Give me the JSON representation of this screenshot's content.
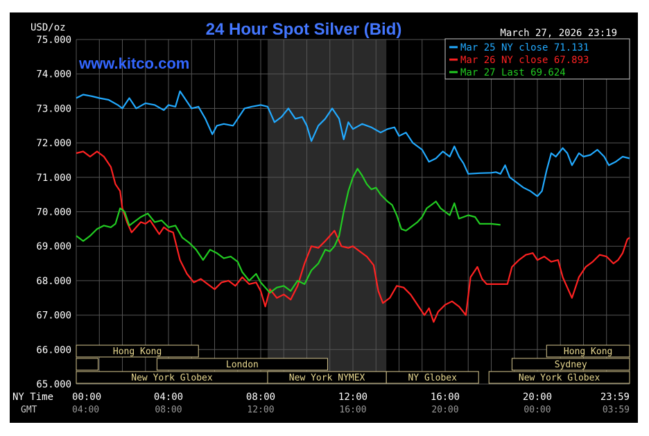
{
  "header": {
    "title": "24 Hour Spot Silver (Bid)",
    "unit": "USD/oz",
    "datetime": "March 27, 2026 23:19",
    "website": "www.kitco.com"
  },
  "legend": [
    {
      "label": "Mar 25 NY close 71.131",
      "color": "#22aaff"
    },
    {
      "label": "Mar 26 NY close 67.893",
      "color": "#ff2222"
    },
    {
      "label": "Mar 27 Last 69.624",
      "color": "#22cc22"
    }
  ],
  "axis_labels": {
    "ny_time": "NY Time",
    "gmt": "GMT"
  },
  "sessions": [
    {
      "label": "Hong Kong",
      "start": 0,
      "end": 5.3,
      "row": 0
    },
    {
      "label": "Hong Kong",
      "start": 20.4,
      "end": 24,
      "row": 0
    },
    {
      "label": "",
      "start": 0,
      "end": 0.95,
      "row": 1
    },
    {
      "label": "London",
      "start": 3.5,
      "end": 10.9,
      "row": 1
    },
    {
      "label": "Sydney",
      "start": 18.9,
      "end": 24,
      "row": 1
    },
    {
      "label": "New York Globex",
      "start": 0,
      "end": 8.3,
      "row": 2
    },
    {
      "label": "New York NYMEX",
      "start": 8.3,
      "end": 13.45,
      "row": 2
    },
    {
      "label": "NY Globex",
      "start": 13.45,
      "end": 17.45,
      "row": 2
    },
    {
      "label": "New York Globex",
      "start": 17.9,
      "end": 24,
      "row": 2
    }
  ],
  "chart_data": {
    "type": "line",
    "title": "24 Hour Spot Silver (Bid)",
    "ylabel": "USD/oz",
    "xlabel": "NY Time",
    "xlim": [
      0,
      24
    ],
    "ylim": [
      65,
      75
    ],
    "x_ticks": [
      {
        "x": 0,
        "ny": "00:00",
        "gmt": "04:00"
      },
      {
        "x": 4,
        "ny": "04:00",
        "gmt": "08:00"
      },
      {
        "x": 8,
        "ny": "08:00",
        "gmt": "12:00"
      },
      {
        "x": 12,
        "ny": "12:00",
        "gmt": "16:00"
      },
      {
        "x": 16,
        "ny": "16:00",
        "gmt": "20:00"
      },
      {
        "x": 20,
        "ny": "20:00",
        "gmt": "00:00"
      },
      {
        "x": 24,
        "ny": "23:59",
        "gmt": "03:59"
      }
    ],
    "y_ticks": [
      "65.000",
      "66.000",
      "67.000",
      "68.000",
      "69.000",
      "70.000",
      "71.000",
      "72.000",
      "73.000",
      "74.000",
      "75.000"
    ],
    "shaded_range": [
      8.3,
      13.45
    ],
    "grid": true,
    "legend_position": "top-right",
    "series": [
      {
        "name": "Mar 25 NY close 71.131",
        "color": "#22aaff",
        "points": [
          [
            0,
            73.3
          ],
          [
            0.3,
            73.4
          ],
          [
            0.7,
            73.35
          ],
          [
            1.0,
            73.3
          ],
          [
            1.4,
            73.25
          ],
          [
            1.8,
            73.1
          ],
          [
            2.0,
            73.0
          ],
          [
            2.3,
            73.3
          ],
          [
            2.6,
            73.0
          ],
          [
            3.0,
            73.15
          ],
          [
            3.4,
            73.1
          ],
          [
            3.8,
            72.95
          ],
          [
            4.0,
            73.1
          ],
          [
            4.3,
            73.05
          ],
          [
            4.5,
            73.5
          ],
          [
            4.8,
            73.2
          ],
          [
            5.0,
            73.0
          ],
          [
            5.3,
            73.05
          ],
          [
            5.6,
            72.7
          ],
          [
            5.9,
            72.25
          ],
          [
            6.1,
            72.5
          ],
          [
            6.4,
            72.55
          ],
          [
            6.8,
            72.5
          ],
          [
            7.0,
            72.7
          ],
          [
            7.3,
            73.0
          ],
          [
            7.6,
            73.05
          ],
          [
            8.0,
            73.1
          ],
          [
            8.3,
            73.05
          ],
          [
            8.6,
            72.6
          ],
          [
            8.9,
            72.75
          ],
          [
            9.2,
            73.0
          ],
          [
            9.5,
            72.7
          ],
          [
            9.8,
            72.75
          ],
          [
            10.0,
            72.5
          ],
          [
            10.2,
            72.05
          ],
          [
            10.5,
            72.5
          ],
          [
            10.8,
            72.7
          ],
          [
            11.1,
            73.0
          ],
          [
            11.4,
            72.7
          ],
          [
            11.6,
            72.1
          ],
          [
            11.8,
            72.6
          ],
          [
            12.0,
            72.4
          ],
          [
            12.4,
            72.55
          ],
          [
            12.8,
            72.45
          ],
          [
            13.2,
            72.3
          ],
          [
            13.5,
            72.4
          ],
          [
            13.8,
            72.45
          ],
          [
            14.0,
            72.2
          ],
          [
            14.3,
            72.3
          ],
          [
            14.6,
            72.0
          ],
          [
            15.0,
            71.8
          ],
          [
            15.3,
            71.45
          ],
          [
            15.6,
            71.55
          ],
          [
            15.9,
            71.75
          ],
          [
            16.2,
            71.6
          ],
          [
            16.4,
            71.9
          ],
          [
            16.6,
            71.6
          ],
          [
            16.8,
            71.4
          ],
          [
            17.0,
            71.1
          ],
          [
            17.5,
            71.12
          ],
          [
            18.0,
            71.13
          ],
          [
            18.2,
            71.15
          ],
          [
            18.4,
            71.1
          ],
          [
            18.6,
            71.35
          ],
          [
            18.8,
            71.0
          ],
          [
            19.1,
            70.85
          ],
          [
            19.4,
            70.7
          ],
          [
            19.7,
            70.6
          ],
          [
            20.0,
            70.45
          ],
          [
            20.2,
            70.6
          ],
          [
            20.4,
            71.2
          ],
          [
            20.6,
            71.7
          ],
          [
            20.8,
            71.6
          ],
          [
            21.1,
            71.85
          ],
          [
            21.3,
            71.7
          ],
          [
            21.5,
            71.35
          ],
          [
            21.8,
            71.7
          ],
          [
            22.0,
            71.6
          ],
          [
            22.3,
            71.65
          ],
          [
            22.6,
            71.8
          ],
          [
            22.9,
            71.6
          ],
          [
            23.1,
            71.35
          ],
          [
            23.4,
            71.45
          ],
          [
            23.7,
            71.6
          ],
          [
            24.0,
            71.55
          ]
        ]
      },
      {
        "name": "Mar 26 NY close 67.893",
        "color": "#ff2222",
        "points": [
          [
            0,
            71.7
          ],
          [
            0.3,
            71.75
          ],
          [
            0.6,
            71.6
          ],
          [
            0.9,
            71.75
          ],
          [
            1.2,
            71.6
          ],
          [
            1.5,
            71.3
          ],
          [
            1.7,
            70.8
          ],
          [
            1.9,
            70.6
          ],
          [
            2.0,
            70.1
          ],
          [
            2.2,
            69.7
          ],
          [
            2.4,
            69.4
          ],
          [
            2.6,
            69.55
          ],
          [
            2.8,
            69.7
          ],
          [
            3.0,
            69.65
          ],
          [
            3.2,
            69.75
          ],
          [
            3.4,
            69.55
          ],
          [
            3.6,
            69.35
          ],
          [
            3.8,
            69.55
          ],
          [
            4.0,
            69.45
          ],
          [
            4.2,
            69.4
          ],
          [
            4.5,
            68.6
          ],
          [
            4.8,
            68.2
          ],
          [
            5.1,
            67.95
          ],
          [
            5.4,
            68.05
          ],
          [
            5.7,
            67.9
          ],
          [
            6.0,
            67.75
          ],
          [
            6.3,
            67.95
          ],
          [
            6.6,
            68.0
          ],
          [
            6.9,
            67.85
          ],
          [
            7.2,
            68.1
          ],
          [
            7.5,
            67.9
          ],
          [
            7.8,
            67.95
          ],
          [
            8.0,
            67.7
          ],
          [
            8.2,
            67.25
          ],
          [
            8.4,
            67.75
          ],
          [
            8.7,
            67.5
          ],
          [
            9.0,
            67.6
          ],
          [
            9.3,
            67.45
          ],
          [
            9.6,
            67.85
          ],
          [
            9.9,
            68.5
          ],
          [
            10.2,
            69.0
          ],
          [
            10.5,
            68.95
          ],
          [
            10.8,
            69.15
          ],
          [
            11.0,
            69.3
          ],
          [
            11.2,
            69.45
          ],
          [
            11.5,
            69.0
          ],
          [
            11.8,
            68.95
          ],
          [
            12.0,
            69.0
          ],
          [
            12.3,
            68.85
          ],
          [
            12.6,
            68.7
          ],
          [
            12.9,
            68.45
          ],
          [
            13.1,
            67.7
          ],
          [
            13.3,
            67.35
          ],
          [
            13.6,
            67.5
          ],
          [
            13.9,
            67.85
          ],
          [
            14.2,
            67.8
          ],
          [
            14.5,
            67.6
          ],
          [
            14.8,
            67.3
          ],
          [
            15.1,
            67.0
          ],
          [
            15.3,
            67.2
          ],
          [
            15.5,
            66.8
          ],
          [
            15.7,
            67.1
          ],
          [
            16.0,
            67.3
          ],
          [
            16.3,
            67.4
          ],
          [
            16.6,
            67.25
          ],
          [
            16.9,
            67.0
          ],
          [
            17.1,
            68.1
          ],
          [
            17.4,
            68.4
          ],
          [
            17.6,
            68.05
          ],
          [
            17.8,
            67.9
          ],
          [
            18.0,
            67.9
          ],
          [
            18.5,
            67.9
          ],
          [
            18.7,
            67.9
          ],
          [
            18.9,
            68.4
          ],
          [
            19.2,
            68.6
          ],
          [
            19.5,
            68.75
          ],
          [
            19.8,
            68.8
          ],
          [
            20.0,
            68.6
          ],
          [
            20.3,
            68.7
          ],
          [
            20.6,
            68.55
          ],
          [
            20.9,
            68.6
          ],
          [
            21.1,
            68.1
          ],
          [
            21.3,
            67.8
          ],
          [
            21.5,
            67.5
          ],
          [
            21.8,
            68.1
          ],
          [
            22.1,
            68.4
          ],
          [
            22.4,
            68.55
          ],
          [
            22.7,
            68.75
          ],
          [
            23.0,
            68.7
          ],
          [
            23.3,
            68.5
          ],
          [
            23.5,
            68.6
          ],
          [
            23.7,
            68.8
          ],
          [
            23.9,
            69.2
          ],
          [
            24.0,
            69.25
          ]
        ]
      },
      {
        "name": "Mar 27 Last 69.624",
        "color": "#22cc22",
        "points": [
          [
            0,
            69.3
          ],
          [
            0.3,
            69.15
          ],
          [
            0.6,
            69.3
          ],
          [
            0.9,
            69.5
          ],
          [
            1.2,
            69.6
          ],
          [
            1.5,
            69.55
          ],
          [
            1.7,
            69.65
          ],
          [
            1.9,
            70.1
          ],
          [
            2.1,
            70.0
          ],
          [
            2.3,
            69.6
          ],
          [
            2.5,
            69.7
          ],
          [
            2.8,
            69.85
          ],
          [
            3.1,
            69.95
          ],
          [
            3.4,
            69.7
          ],
          [
            3.7,
            69.75
          ],
          [
            4.0,
            69.55
          ],
          [
            4.3,
            69.6
          ],
          [
            4.6,
            69.25
          ],
          [
            4.9,
            69.1
          ],
          [
            5.2,
            68.9
          ],
          [
            5.5,
            68.6
          ],
          [
            5.8,
            68.9
          ],
          [
            6.1,
            68.8
          ],
          [
            6.4,
            68.65
          ],
          [
            6.7,
            68.7
          ],
          [
            7.0,
            68.55
          ],
          [
            7.2,
            68.25
          ],
          [
            7.5,
            68.0
          ],
          [
            7.8,
            68.2
          ],
          [
            8.0,
            67.95
          ],
          [
            8.2,
            67.8
          ],
          [
            8.4,
            67.65
          ],
          [
            8.7,
            67.8
          ],
          [
            9.0,
            67.85
          ],
          [
            9.3,
            67.7
          ],
          [
            9.6,
            68.0
          ],
          [
            9.9,
            67.9
          ],
          [
            10.2,
            68.3
          ],
          [
            10.5,
            68.5
          ],
          [
            10.8,
            68.9
          ],
          [
            11.0,
            68.85
          ],
          [
            11.2,
            69.0
          ],
          [
            11.4,
            69.3
          ],
          [
            11.6,
            70.0
          ],
          [
            11.8,
            70.6
          ],
          [
            12.0,
            71.0
          ],
          [
            12.2,
            71.25
          ],
          [
            12.4,
            71.05
          ],
          [
            12.6,
            70.8
          ],
          [
            12.8,
            70.65
          ],
          [
            13.0,
            70.7
          ],
          [
            13.2,
            70.5
          ],
          [
            13.5,
            70.3
          ],
          [
            13.7,
            70.2
          ],
          [
            13.9,
            69.9
          ],
          [
            14.1,
            69.5
          ],
          [
            14.3,
            69.45
          ],
          [
            14.5,
            69.55
          ],
          [
            14.8,
            69.7
          ],
          [
            15.0,
            69.85
          ],
          [
            15.2,
            70.1
          ],
          [
            15.4,
            70.2
          ],
          [
            15.6,
            70.3
          ],
          [
            15.8,
            70.1
          ],
          [
            16.0,
            70.0
          ],
          [
            16.2,
            69.9
          ],
          [
            16.4,
            70.25
          ],
          [
            16.6,
            69.8
          ],
          [
            16.8,
            69.85
          ],
          [
            17.0,
            69.9
          ],
          [
            17.3,
            69.85
          ],
          [
            17.5,
            69.65
          ],
          [
            18.0,
            69.65
          ],
          [
            18.4,
            69.62
          ]
        ]
      }
    ]
  }
}
